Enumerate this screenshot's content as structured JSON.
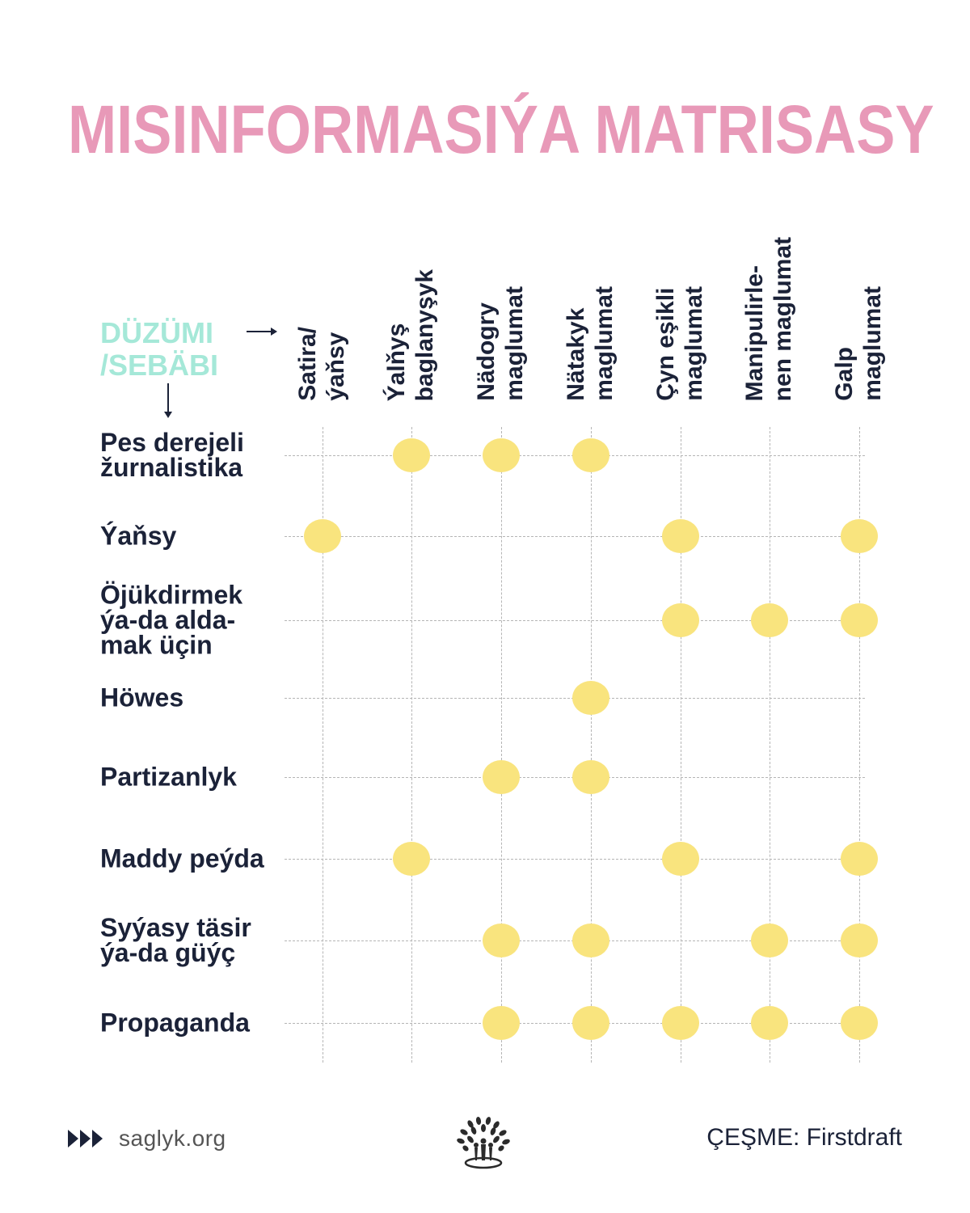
{
  "title": "MISINFORMASIÝA MATRISASY",
  "axis_label": "DÜZÜMI\n/SEBÄBI",
  "colors": {
    "title": "#e899b8",
    "axis_label": "#a5e8d8",
    "text": "#1b2238",
    "dot": "#f9e47e"
  },
  "columns": [
    "Satira/\nýaňsy",
    "Ýalňyş\nbaglanyşyk",
    "Nädogry\nmaglumat",
    "Nätakyk\nmaglumat",
    "Çyn eşikli\nmaglumat",
    "Manipulirle-\nnen maglumat",
    "Galp\nmaglumat"
  ],
  "rows": [
    {
      "label": "Pes derejeli\nžurnalistika",
      "marks": [
        1,
        2,
        3
      ]
    },
    {
      "label": "Ýaňsy",
      "marks": [
        0,
        4,
        6
      ]
    },
    {
      "label": "Öjükdirmek\nýa-da alda-\nmak üçin",
      "marks": [
        4,
        5,
        6
      ]
    },
    {
      "label": "Höwes",
      "marks": [
        3
      ]
    },
    {
      "label": "Partizanlyk",
      "marks": [
        2,
        3
      ]
    },
    {
      "label": "Maddy peýda",
      "marks": [
        1,
        4,
        6
      ]
    },
    {
      "label": "Syýasy täsir\nýa-da güýç",
      "marks": [
        2,
        3,
        5,
        6
      ]
    },
    {
      "label": "Propaganda",
      "marks": [
        2,
        3,
        4,
        5,
        6
      ]
    }
  ],
  "footer": {
    "site": "saglyk.org",
    "source": "ÇEŞME: Firstdraft",
    "logo_icon": "tree-people-icon"
  }
}
